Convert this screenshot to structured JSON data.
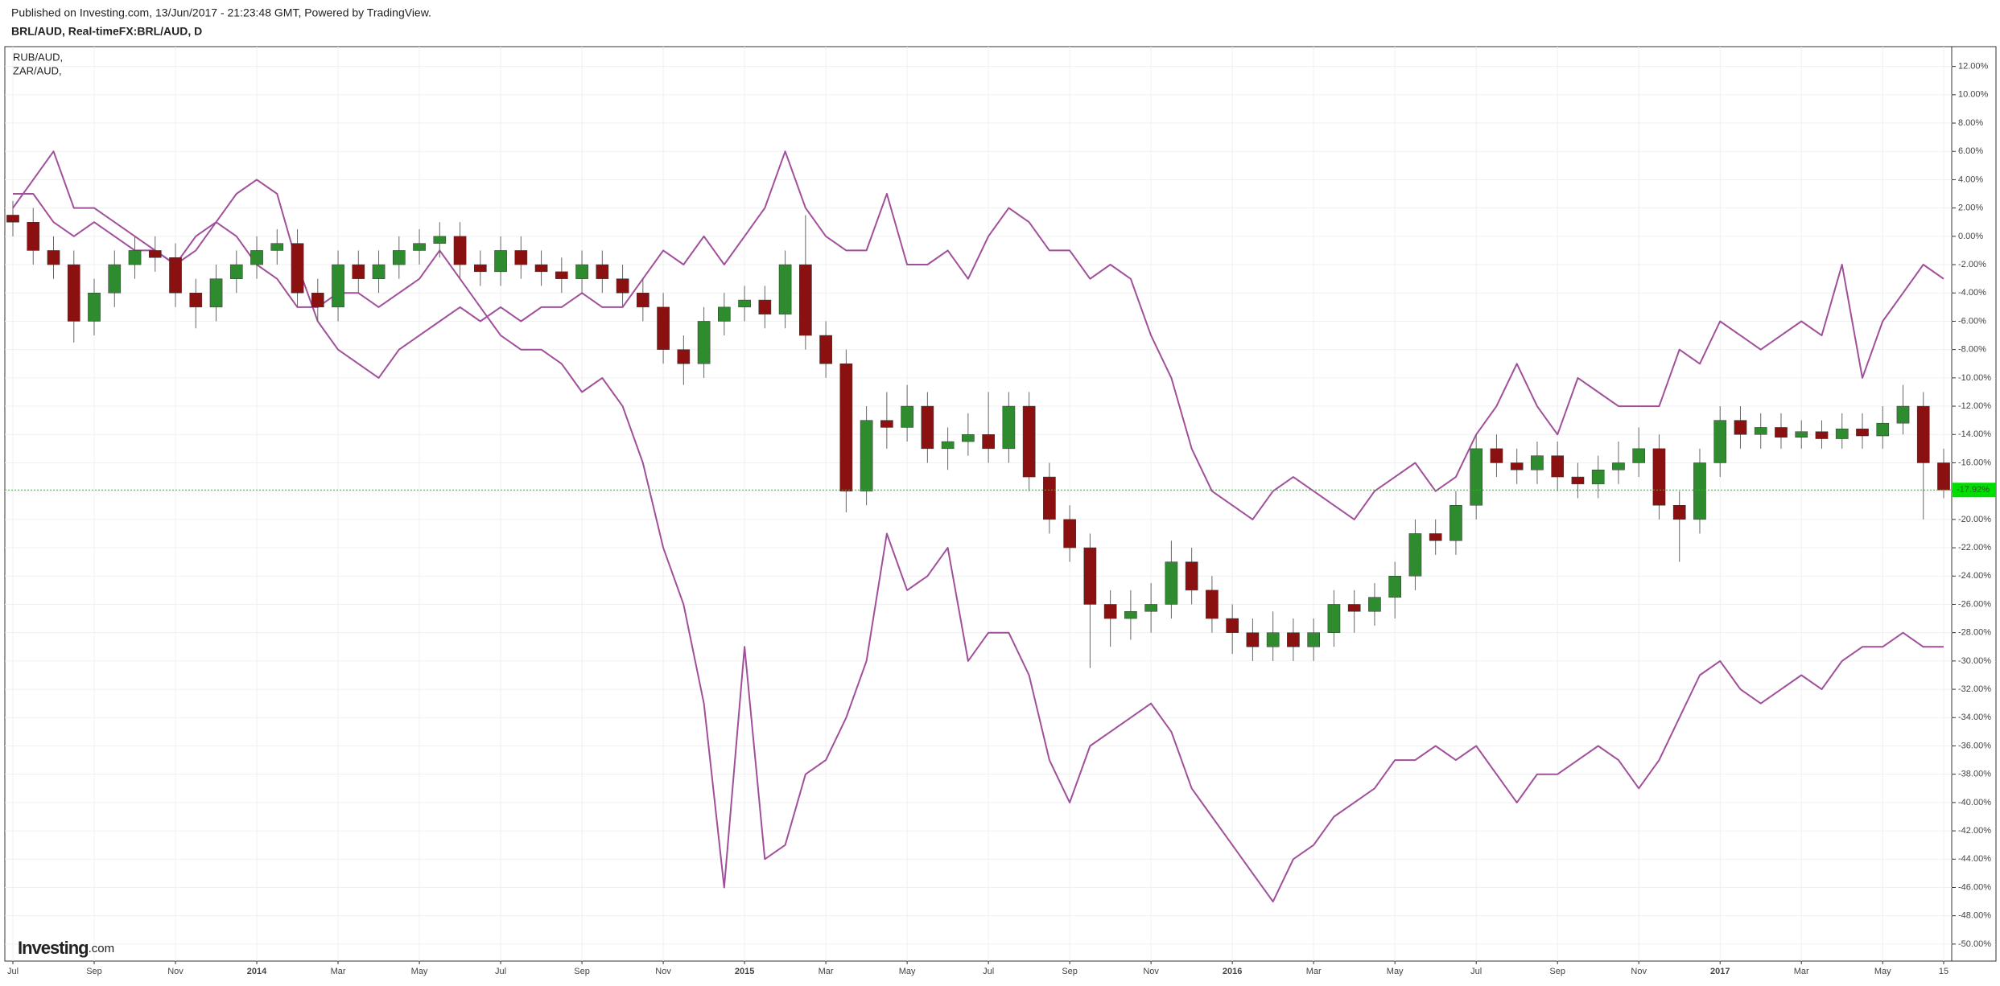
{
  "header": {
    "published": "Published on Investing.com, 13/Jun/2017 - 21:23:48 GMT, Powered by TradingView."
  },
  "chart_data": {
    "type": "candlestick",
    "title": "BRL/AUD, Real-timeFX:BRL/AUD, D",
    "watermark_brand": "Investing",
    "watermark_suffix": ".com",
    "categories": [
      "Jul",
      null,
      null,
      null,
      "Sep",
      null,
      null,
      null,
      "Nov",
      null,
      null,
      null,
      "2014",
      null,
      null,
      null,
      "Mar",
      null,
      null,
      null,
      "May",
      null,
      null,
      null,
      "Jul",
      null,
      null,
      null,
      "Sep",
      null,
      null,
      null,
      "Nov",
      null,
      null,
      null,
      "2015",
      null,
      null,
      null,
      "Mar",
      null,
      null,
      null,
      "May",
      null,
      null,
      null,
      "Jul",
      null,
      null,
      null,
      "Sep",
      null,
      null,
      null,
      "Nov",
      null,
      null,
      null,
      "2016",
      null,
      null,
      null,
      "Mar",
      null,
      null,
      null,
      "May",
      null,
      null,
      null,
      "Jul",
      null,
      null,
      null,
      "Sep",
      null,
      null,
      null,
      "Nov",
      null,
      null,
      null,
      "2017",
      null,
      null,
      null,
      "Mar",
      null,
      null,
      null,
      "May",
      null,
      null,
      "15"
    ],
    "open": [
      1.5,
      1,
      -1,
      -2,
      -6,
      -4,
      -2,
      -1,
      -1.5,
      -4,
      -5,
      -3,
      -2,
      -1,
      -0.5,
      -4,
      -5,
      -2,
      -3,
      -2,
      -1,
      -0.5,
      0,
      -2,
      -2.5,
      -1,
      -2,
      -2.5,
      -3,
      -2,
      -3,
      -4,
      -5,
      -8,
      -9,
      -6,
      -5,
      -4.5,
      -5.5,
      -2,
      -7,
      -9,
      -18,
      -13,
      -13.5,
      -12,
      -15,
      -14.5,
      -14,
      -15,
      -12,
      -17,
      -20,
      -22,
      -26,
      -27,
      -26.5,
      -26,
      -23,
      -25,
      -27,
      -28,
      -29,
      -28,
      -29,
      -28,
      -26,
      -26.5,
      -25.5,
      -24,
      -21,
      -21.5,
      -19,
      -15,
      -16,
      -16.5,
      -15.5,
      -17,
      -17.5,
      -16.5,
      -16,
      -15,
      -19,
      -20,
      -16,
      -13,
      -14,
      -13.5,
      -14.2,
      -13.8,
      -14.3,
      -13.6,
      -14.1,
      -13.2,
      -12,
      -16
    ],
    "high": [
      2.5,
      2,
      0,
      -1,
      -3,
      -1,
      0,
      0,
      -0.5,
      -3,
      -2,
      -1,
      0,
      0.5,
      0.5,
      -3,
      -1,
      -1,
      -1,
      0,
      0.5,
      1,
      1,
      -1,
      0,
      0,
      -1,
      -1.5,
      -1,
      -1,
      -2,
      -3,
      -4,
      -7,
      -5,
      -4,
      -3.5,
      -3.5,
      -1,
      1.5,
      -6,
      -8,
      -12,
      -11,
      -10.5,
      -11,
      -13.5,
      -12.5,
      -11,
      -11,
      -11,
      -16,
      -19,
      -21,
      -25,
      -25,
      -24.5,
      -21.5,
      -22,
      -24,
      -26,
      -27,
      -26.5,
      -27,
      -27,
      -25,
      -25,
      -24.5,
      -23,
      -20,
      -20,
      -18,
      -14,
      -14,
      -15,
      -14.5,
      -14.5,
      -16,
      -15.5,
      -14.5,
      -13.5,
      -14,
      -18,
      -15,
      -12,
      -12,
      -12.5,
      -12.5,
      -13,
      -13,
      -12.5,
      -12.5,
      -12,
      -10.5,
      -11,
      -15
    ],
    "low": [
      0,
      -2,
      -3,
      -7.5,
      -7,
      -5,
      -3,
      -2.5,
      -5,
      -6.5,
      -6,
      -4,
      -3,
      -2,
      -5,
      -6,
      -6,
      -4,
      -4,
      -3,
      -2,
      -1.5,
      -3,
      -3.5,
      -3.5,
      -3,
      -3.5,
      -4,
      -4,
      -4,
      -5,
      -6,
      -9,
      -10.5,
      -10,
      -7,
      -6,
      -6.5,
      -6.5,
      -8,
      -10,
      -19.5,
      -19,
      -15,
      -14.5,
      -16,
      -16.5,
      -15.5,
      -16,
      -16,
      -18,
      -21,
      -23,
      -30.5,
      -29,
      -28.5,
      -28,
      -27,
      -26,
      -28,
      -29.5,
      -30,
      -30,
      -30,
      -30,
      -29,
      -28,
      -27.5,
      -27,
      -25,
      -22.5,
      -22.5,
      -20,
      -17,
      -17.5,
      -17.5,
      -18,
      -18.5,
      -18.5,
      -17.5,
      -17,
      -20,
      -23,
      -21,
      -17,
      -15,
      -15,
      -15,
      -15,
      -15,
      -15,
      -15,
      -15,
      -14,
      -20,
      -18.5
    ],
    "close": [
      1,
      -1,
      -2,
      -6,
      -4,
      -2,
      -1,
      -1.5,
      -4,
      -5,
      -3,
      -2,
      -1,
      -0.5,
      -4,
      -5,
      -2,
      -3,
      -2,
      -1,
      -0.5,
      0,
      -2,
      -2.5,
      -1,
      -2,
      -2.5,
      -3,
      -2,
      -3,
      -4,
      -5,
      -8,
      -9,
      -6,
      -5,
      -4.5,
      -5.5,
      -2,
      -7,
      -9,
      -18,
      -13,
      -13.5,
      -12,
      -15,
      -14.5,
      -14,
      -15,
      -12,
      -17,
      -20,
      -22,
      -26,
      -27,
      -26.5,
      -26,
      -23,
      -25,
      -27,
      -28,
      -29,
      -28,
      -29,
      -28,
      -26,
      -26.5,
      -25.5,
      -24,
      -21,
      -21.5,
      -19,
      -15,
      -16,
      -16.5,
      -15.5,
      -17,
      -17.5,
      -16.5,
      -16,
      -15,
      -19,
      -20,
      -16,
      -13,
      -14,
      -13.5,
      -14.2,
      -13.8,
      -14.3,
      -13.6,
      -14.1,
      -13.2,
      -12,
      -16,
      -17.92
    ],
    "last_label": "-17.92%",
    "last_color": "#00dd00",
    "up_color": "#2e8b2e",
    "down_color": "#8b1111",
    "series": [
      {
        "name": "RUB/AUD,",
        "type": "line",
        "color": "#a0509a",
        "values": [
          3,
          3,
          1,
          0,
          1,
          0,
          -1,
          -1,
          -2,
          -1,
          1,
          0,
          -2,
          -3,
          -5,
          -5,
          -4,
          -4,
          -5,
          -4,
          -3,
          -1,
          -3,
          -5,
          -7,
          -8,
          -8,
          -9,
          -11,
          -10,
          -12,
          -16,
          -22,
          -26,
          -33,
          -46,
          -29,
          -44,
          -43,
          -38,
          -37,
          -34,
          -30,
          -21,
          -25,
          -24,
          -22,
          -30,
          -28,
          -28,
          -31,
          -37,
          -40,
          -36,
          -35,
          -34,
          -33,
          -35,
          -39,
          -41,
          -43,
          -45,
          -47,
          -44,
          -43,
          -41,
          -40,
          -39,
          -37,
          -37,
          -36,
          -37,
          -36,
          -38,
          -40,
          -38,
          -38,
          -37,
          -36,
          -37,
          -39,
          -37,
          -34,
          -31,
          -30,
          -32,
          -33,
          -32,
          -31,
          -32,
          -30,
          -29,
          -29,
          -28,
          -29,
          -29
        ]
      },
      {
        "name": "ZAR/AUD,",
        "type": "line",
        "color": "#a0509a",
        "values": [
          2,
          4,
          6,
          2,
          2,
          1,
          0,
          -1,
          -2,
          0,
          1,
          3,
          4,
          3,
          -2,
          -6,
          -8,
          -9,
          -10,
          -8,
          -7,
          -6,
          -5,
          -6,
          -5,
          -6,
          -5,
          -5,
          -4,
          -5,
          -5,
          -3,
          -1,
          -2,
          0,
          -2,
          0,
          2,
          6,
          2,
          0,
          -1,
          -1,
          3,
          -2,
          -2,
          -1,
          -3,
          0,
          2,
          1,
          -1,
          -1,
          -3,
          -2,
          -3,
          -7,
          -10,
          -15,
          -18,
          -19,
          -20,
          -18,
          -17,
          -18,
          -19,
          -20,
          -18,
          -17,
          -16,
          -18,
          -17,
          -14,
          -12,
          -9,
          -12,
          -14,
          -10,
          -11,
          -12,
          -12,
          -12,
          -8,
          -9,
          -6,
          -7,
          -8,
          -7,
          -6,
          -7,
          -2,
          -10,
          -6,
          -4,
          -2,
          -3
        ]
      }
    ],
    "ylim": [
      -51.2,
      13.4
    ],
    "yticks": [
      {
        "value": 12,
        "label": "12.00%"
      },
      {
        "value": 10,
        "label": "10.00%"
      },
      {
        "value": 8,
        "label": "8.00%"
      },
      {
        "value": 6,
        "label": "6.00%"
      },
      {
        "value": 4,
        "label": "4.00%"
      },
      {
        "value": 2,
        "label": "2.00%"
      },
      {
        "value": 0,
        "label": "0.00%"
      },
      {
        "value": -2,
        "label": "-2.00%"
      },
      {
        "value": -4,
        "label": "-4.00%"
      },
      {
        "value": -6,
        "label": "-6.00%"
      },
      {
        "value": -8,
        "label": "-8.00%"
      },
      {
        "value": -10,
        "label": "-10.00%"
      },
      {
        "value": -12,
        "label": "-12.00%"
      },
      {
        "value": -14,
        "label": "-14.00%"
      },
      {
        "value": -16,
        "label": "-16.00%"
      },
      {
        "value": -18,
        "label": "-18.00%"
      },
      {
        "value": -20,
        "label": "-20.00%"
      },
      {
        "value": -22,
        "label": "-22.00%"
      },
      {
        "value": -24,
        "label": "-24.00%"
      },
      {
        "value": -26,
        "label": "-26.00%"
      },
      {
        "value": -28,
        "label": "-28.00%"
      },
      {
        "value": -30,
        "label": "-30.00%"
      },
      {
        "value": -32,
        "label": "-32.00%"
      },
      {
        "value": -34,
        "label": "-34.00%"
      },
      {
        "value": -36,
        "label": "-36.00%"
      },
      {
        "value": -38,
        "label": "-38.00%"
      },
      {
        "value": -40,
        "label": "-40.00%"
      },
      {
        "value": -42,
        "label": "-42.00%"
      },
      {
        "value": -44,
        "label": "-44.00%"
      },
      {
        "value": -46,
        "label": "-46.00%"
      },
      {
        "value": -48,
        "label": "-48.00%"
      },
      {
        "value": -50,
        "label": "-50.00%"
      }
    ],
    "grid": true
  }
}
